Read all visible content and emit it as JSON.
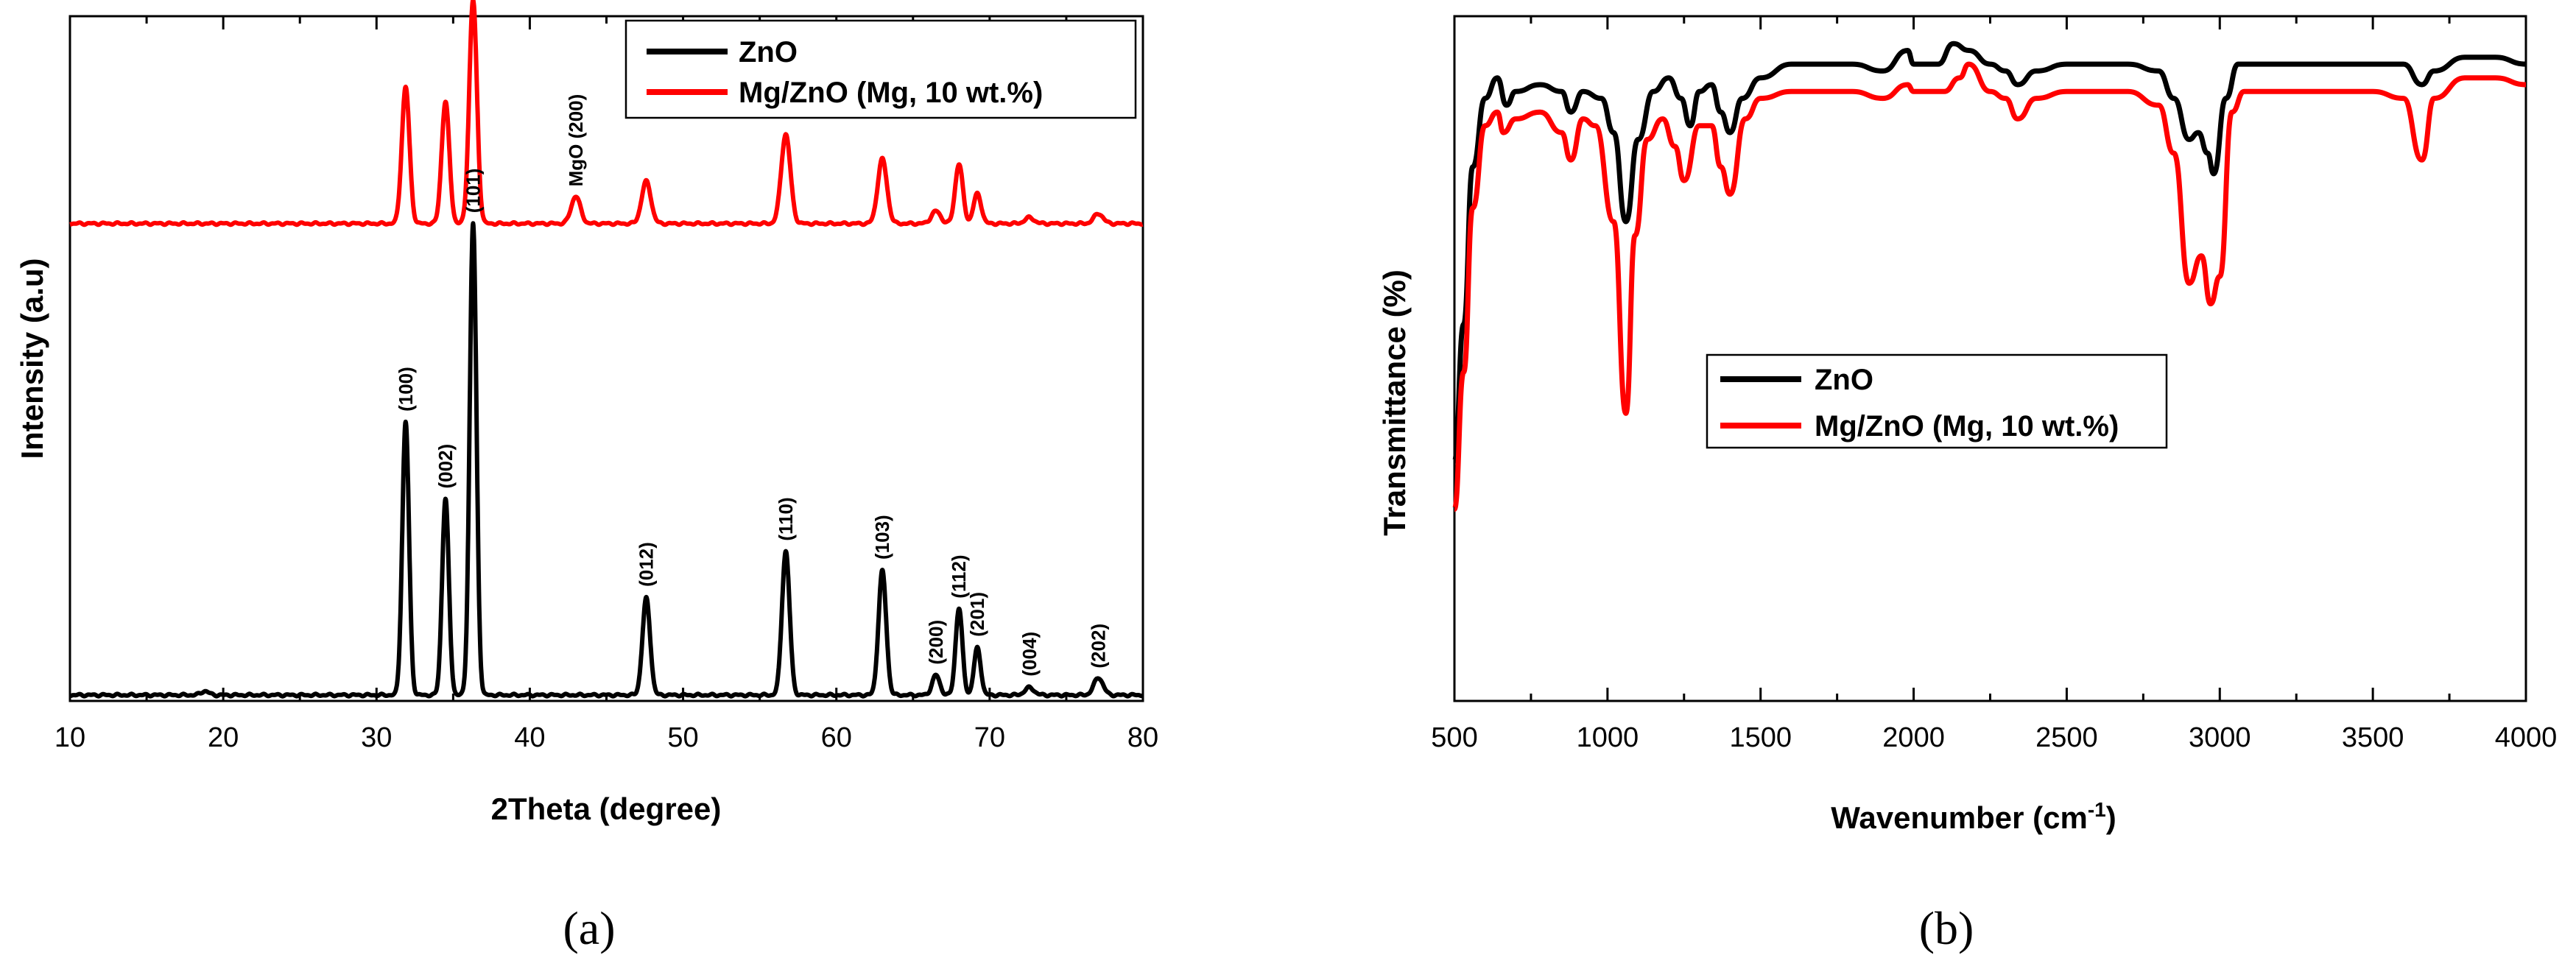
{
  "chart_data": [
    {
      "id": "xrd",
      "type": "line",
      "caption": "(a)",
      "xlabel": "2Theta (degree)",
      "ylabel": "Intensity (a.u)",
      "xlim": [
        10,
        80
      ],
      "xticks": [
        10,
        20,
        30,
        40,
        50,
        60,
        70,
        80
      ],
      "legend": {
        "position": "top-right",
        "entries": [
          "ZnO",
          "Mg/ZnO (Mg, 10 wt.%)"
        ]
      },
      "series": [
        {
          "name": "ZnO",
          "color": "#000000",
          "baseline": 0,
          "peaks": [
            {
              "x": 18.8,
              "h": 0.8,
              "w": 0.25
            },
            {
              "x": 31.9,
              "h": 55.0,
              "w": 0.22
            },
            {
              "x": 34.5,
              "h": 39.5,
              "w": 0.22
            },
            {
              "x": 36.3,
              "h": 95.0,
              "w": 0.22
            },
            {
              "x": 47.6,
              "h": 19.5,
              "w": 0.25
            },
            {
              "x": 56.7,
              "h": 29.0,
              "w": 0.25
            },
            {
              "x": 63.0,
              "h": 25.0,
              "w": 0.25
            },
            {
              "x": 66.5,
              "h": 4.0,
              "w": 0.25
            },
            {
              "x": 68.0,
              "h": 17.5,
              "w": 0.22
            },
            {
              "x": 69.2,
              "h": 9.5,
              "w": 0.22
            },
            {
              "x": 72.6,
              "h": 1.5,
              "w": 0.3
            },
            {
              "x": 77.1,
              "h": 3.5,
              "w": 0.3
            }
          ]
        },
        {
          "name": "Mg/ZnO (Mg, 10 wt.%)",
          "color": "#ff0000",
          "baseline": 95,
          "peaks": [
            {
              "x": 31.9,
              "h": 27.5,
              "w": 0.25
            },
            {
              "x": 34.5,
              "h": 24.5,
              "w": 0.25
            },
            {
              "x": 36.3,
              "h": 45.0,
              "w": 0.25
            },
            {
              "x": 43.0,
              "h": 5.5,
              "w": 0.3
            },
            {
              "x": 47.6,
              "h": 8.5,
              "w": 0.3
            },
            {
              "x": 56.7,
              "h": 18.0,
              "w": 0.3
            },
            {
              "x": 63.0,
              "h": 13.0,
              "w": 0.3
            },
            {
              "x": 66.5,
              "h": 2.5,
              "w": 0.3
            },
            {
              "x": 68.0,
              "h": 12.0,
              "w": 0.25
            },
            {
              "x": 69.2,
              "h": 6.0,
              "w": 0.25
            },
            {
              "x": 72.6,
              "h": 1.2,
              "w": 0.3
            },
            {
              "x": 77.1,
              "h": 2.0,
              "w": 0.3
            }
          ]
        }
      ],
      "peak_labels": [
        {
          "text": "(100)",
          "x": 31.9
        },
        {
          "text": "(002)",
          "x": 34.5
        },
        {
          "text": "(101)",
          "x": 36.3
        },
        {
          "text": "(012)",
          "x": 47.6
        },
        {
          "text": "(110)",
          "x": 56.7
        },
        {
          "text": "(103)",
          "x": 63.0
        },
        {
          "text": "(200)",
          "x": 66.5
        },
        {
          "text": "(112)",
          "x": 68.0
        },
        {
          "text": "(201)",
          "x": 69.2
        },
        {
          "text": "(004)",
          "x": 72.6
        },
        {
          "text": "(202)",
          "x": 77.1
        },
        {
          "text": "MgO (200)",
          "x": 43.0,
          "series": "Mg/ZnO (Mg, 10 wt.%)"
        }
      ]
    },
    {
      "id": "ftir",
      "type": "line",
      "caption": "(b)",
      "xlabel": "Wavenumber (cm",
      "xlabel_sup": "-1",
      "xlabel_end": ")",
      "ylabel": "Transmittance (%)",
      "xlim": [
        500,
        4000
      ],
      "xticks": [
        500,
        1000,
        1500,
        2000,
        2500,
        3000,
        3500,
        4000
      ],
      "legend": {
        "position": "center-left",
        "entries": [
          "ZnO",
          "Mg/ZnO (Mg, 10 wt.%)"
        ]
      },
      "series": [
        {
          "name": "ZnO",
          "color": "#000000",
          "points": [
            [
              500,
              35
            ],
            [
              530,
              55
            ],
            [
              560,
              78
            ],
            [
              600,
              88
            ],
            [
              640,
              91
            ],
            [
              670,
              87
            ],
            [
              700,
              89
            ],
            [
              780,
              90
            ],
            [
              850,
              89
            ],
            [
              880,
              86
            ],
            [
              920,
              89
            ],
            [
              980,
              88
            ],
            [
              1020,
              83
            ],
            [
              1060,
              70
            ],
            [
              1100,
              82
            ],
            [
              1150,
              89
            ],
            [
              1200,
              91
            ],
            [
              1240,
              88
            ],
            [
              1270,
              84
            ],
            [
              1300,
              89
            ],
            [
              1340,
              90
            ],
            [
              1370,
              86
            ],
            [
              1400,
              83
            ],
            [
              1440,
              88
            ],
            [
              1500,
              91
            ],
            [
              1600,
              93
            ],
            [
              1700,
              93
            ],
            [
              1800,
              93
            ],
            [
              1900,
              92
            ],
            [
              1980,
              95
            ],
            [
              2000,
              93
            ],
            [
              2080,
              93
            ],
            [
              2130,
              96
            ],
            [
              2180,
              95
            ],
            [
              2250,
              93
            ],
            [
              2300,
              92
            ],
            [
              2340,
              90
            ],
            [
              2400,
              92
            ],
            [
              2500,
              93
            ],
            [
              2600,
              93
            ],
            [
              2700,
              93
            ],
            [
              2800,
              92
            ],
            [
              2850,
              88
            ],
            [
              2900,
              82
            ],
            [
              2930,
              83
            ],
            [
              2960,
              80
            ],
            [
              2980,
              77
            ],
            [
              3020,
              88
            ],
            [
              3060,
              93
            ],
            [
              3200,
              93
            ],
            [
              3400,
              93
            ],
            [
              3600,
              93
            ],
            [
              3660,
              90
            ],
            [
              3700,
              92
            ],
            [
              3800,
              94
            ],
            [
              3900,
              94
            ],
            [
              4000,
              93
            ]
          ]
        },
        {
          "name": "Mg/ZnO (Mg, 10 wt.%)",
          "color": "#ff0000",
          "points": [
            [
              500,
              28
            ],
            [
              530,
              48
            ],
            [
              560,
              72
            ],
            [
              600,
              84
            ],
            [
              640,
              86
            ],
            [
              660,
              83
            ],
            [
              700,
              85
            ],
            [
              780,
              86
            ],
            [
              850,
              83
            ],
            [
              880,
              79
            ],
            [
              920,
              85
            ],
            [
              960,
              84
            ],
            [
              1020,
              70
            ],
            [
              1060,
              42
            ],
            [
              1090,
              68
            ],
            [
              1130,
              82
            ],
            [
              1180,
              85
            ],
            [
              1220,
              81
            ],
            [
              1250,
              76
            ],
            [
              1300,
              84
            ],
            [
              1340,
              84
            ],
            [
              1370,
              78
            ],
            [
              1400,
              74
            ],
            [
              1450,
              85
            ],
            [
              1500,
              88
            ],
            [
              1600,
              89
            ],
            [
              1700,
              89
            ],
            [
              1800,
              89
            ],
            [
              1900,
              88
            ],
            [
              1980,
              90
            ],
            [
              2000,
              89
            ],
            [
              2100,
              89
            ],
            [
              2150,
              91
            ],
            [
              2180,
              93
            ],
            [
              2250,
              89
            ],
            [
              2300,
              88
            ],
            [
              2340,
              85
            ],
            [
              2400,
              88
            ],
            [
              2500,
              89
            ],
            [
              2600,
              89
            ],
            [
              2700,
              89
            ],
            [
              2800,
              87
            ],
            [
              2850,
              80
            ],
            [
              2900,
              61
            ],
            [
              2940,
              65
            ],
            [
              2970,
              58
            ],
            [
              3000,
              62
            ],
            [
              3040,
              86
            ],
            [
              3080,
              89
            ],
            [
              3300,
              89
            ],
            [
              3500,
              89
            ],
            [
              3600,
              88
            ],
            [
              3660,
              79
            ],
            [
              3700,
              88
            ],
            [
              3800,
              91
            ],
            [
              3900,
              91
            ],
            [
              4000,
              90
            ]
          ]
        }
      ]
    }
  ]
}
